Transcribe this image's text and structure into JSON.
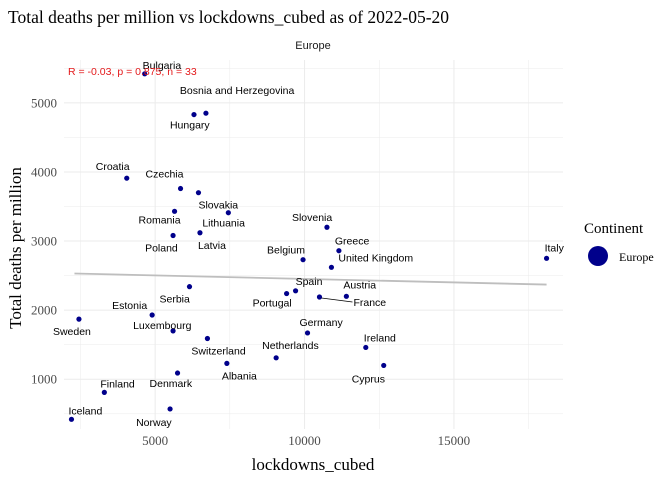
{
  "title": "Total deaths per million vs lockdowns_cubed as of 2022-05-20",
  "colors": {
    "point": "#00008B",
    "trend": "#BEBEBE",
    "grid": "#EBEBEB",
    "annotation": "#E41A1C",
    "text": "#000000",
    "axis_text": "#4D4D4D"
  },
  "chart_data": {
    "type": "scatter",
    "facet_label": "Europe",
    "xlabel": "lockdowns_cubed",
    "ylabel": "Total deaths per million",
    "xlim": [
      1950,
      18650
    ],
    "ylim": [
      280,
      5620
    ],
    "x_ticks": [
      5000,
      10000,
      15000
    ],
    "x_tick_labels": [
      "5000",
      "10000",
      "15000"
    ],
    "y_ticks": [
      1000,
      2000,
      3000,
      4000,
      5000
    ],
    "y_tick_labels": [
      "1000",
      "2000",
      "3000",
      "4000",
      "5000"
    ],
    "grid": true,
    "annotation": "R = -0.03, p = 0.875, n = 33",
    "trend_line": {
      "x": [
        2300,
        18100
      ],
      "y": [
        2530,
        2370
      ]
    },
    "legend": {
      "title": "Continent",
      "entries": [
        "Europe"
      ],
      "position": "right"
    },
    "points": [
      {
        "label": "Bulgaria",
        "x": 4650,
        "y": 5420
      },
      {
        "label": "Bosnia and Herzegovina",
        "x": 6700,
        "y": 4850
      },
      {
        "label": "Hungary",
        "x": 6300,
        "y": 4830
      },
      {
        "label": "Croatia",
        "x": 4050,
        "y": 3910
      },
      {
        "label": "Czechia",
        "x": 5850,
        "y": 3760
      },
      {
        "label": "Slovakia",
        "x": 6450,
        "y": 3700
      },
      {
        "label": "Romania",
        "x": 5650,
        "y": 3430
      },
      {
        "label": "Lithuania",
        "x": 7450,
        "y": 3410
      },
      {
        "label": "Slovenia",
        "x": 10750,
        "y": 3200
      },
      {
        "label": "Poland",
        "x": 5600,
        "y": 3080
      },
      {
        "label": "Latvia",
        "x": 6500,
        "y": 3120
      },
      {
        "label": "Greece",
        "x": 11150,
        "y": 2860
      },
      {
        "label": "Belgium",
        "x": 9950,
        "y": 2730
      },
      {
        "label": "United Kingdom",
        "x": 10900,
        "y": 2620
      },
      {
        "label": "Italy",
        "x": 18100,
        "y": 2750
      },
      {
        "label": "Serbia",
        "x": 6150,
        "y": 2340
      },
      {
        "label": "Spain",
        "x": 9700,
        "y": 2280
      },
      {
        "label": "Austria",
        "x": 11400,
        "y": 2200
      },
      {
        "label": "Portugal",
        "x": 9400,
        "y": 2240
      },
      {
        "label": "France",
        "x": 10500,
        "y": 2190
      },
      {
        "label": "Estonia",
        "x": 4900,
        "y": 1930
      },
      {
        "label": "Sweden",
        "x": 2450,
        "y": 1870
      },
      {
        "label": "Luxembourg",
        "x": 5600,
        "y": 1700
      },
      {
        "label": "Germany",
        "x": 10100,
        "y": 1670
      },
      {
        "label": "Switzerland",
        "x": 6750,
        "y": 1590
      },
      {
        "label": "Ireland",
        "x": 12050,
        "y": 1460
      },
      {
        "label": "Netherlands",
        "x": 9050,
        "y": 1310
      },
      {
        "label": "Albania",
        "x": 7400,
        "y": 1230
      },
      {
        "label": "Cyprus",
        "x": 12650,
        "y": 1200
      },
      {
        "label": "Denmark",
        "x": 5750,
        "y": 1090
      },
      {
        "label": "Finland",
        "x": 3300,
        "y": 810
      },
      {
        "label": "Norway",
        "x": 5500,
        "y": 570
      },
      {
        "label": "Iceland",
        "x": 2200,
        "y": 420
      }
    ]
  }
}
